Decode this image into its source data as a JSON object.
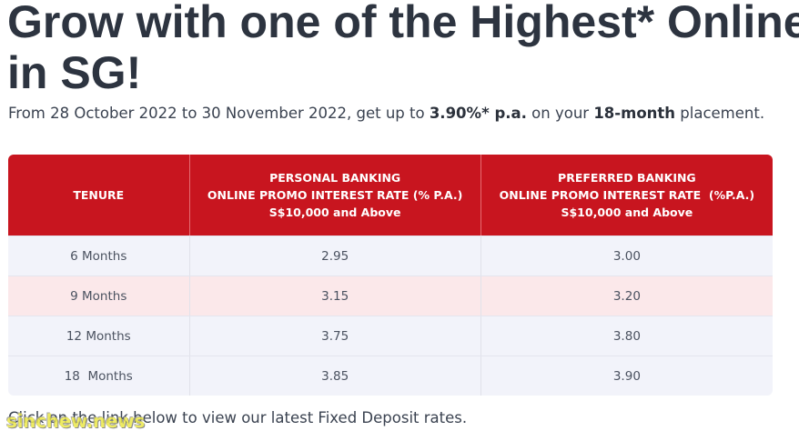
{
  "headline": {
    "line1": "Grow with one of the Highest* Online",
    "line2": "in SG!"
  },
  "intro": {
    "prefix": "From 28 October 2022 to 30 November 2022, get up to ",
    "rate": "3.90%* p.a.",
    "middle": " on your ",
    "tenure": "18-month",
    "suffix": " placement."
  },
  "table": {
    "headers": {
      "tenure": "TENURE",
      "personal": [
        "PERSONAL BANKING",
        "ONLINE PROMO INTEREST RATE (% P.A.)",
        "S$10,000 and Above"
      ],
      "preferred": [
        "PREFERRED BANKING",
        "ONLINE PROMO INTEREST RATE  (%P.A.)",
        "S$10,000 and Above"
      ]
    },
    "rows": [
      {
        "tenure": "6 Months",
        "personal": "2.95",
        "preferred": "3.00"
      },
      {
        "tenure": "9 Months",
        "personal": "3.15",
        "preferred": "3.20"
      },
      {
        "tenure": "12 Months",
        "personal": "3.75",
        "preferred": "3.80"
      },
      {
        "tenure": "18  Months",
        "personal": "3.85",
        "preferred": "3.90"
      }
    ]
  },
  "footer": {
    "link_text": "Click on the link below",
    "suffix": " to view our latest Fixed Deposit rates."
  },
  "watermark": "sinchew.news",
  "colors": {
    "header_bg": "#c8151f",
    "row_odd": "#f2f3fa",
    "row_even": "#fbe8ea",
    "text": "#3a4250"
  }
}
